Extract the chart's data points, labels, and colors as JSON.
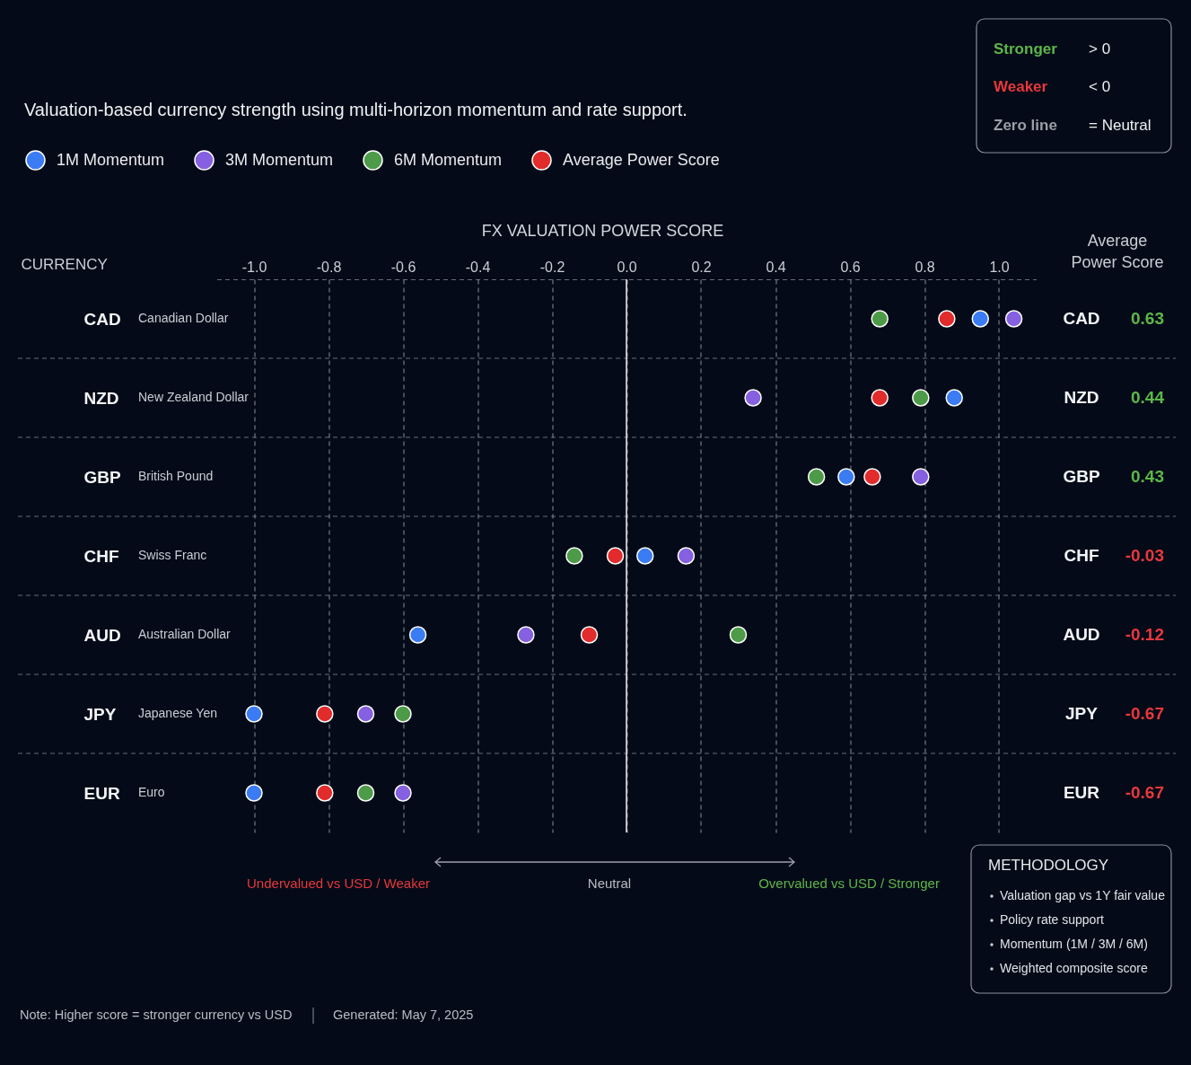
{
  "chart_data": [
    {
      "type": "scatter",
      "title": "Valuation-based currency strength using multi-horizon momentum and rate support.",
      "xlabel": "FX VALUATION POWER SCORE",
      "ylabel": "CURRENCY",
      "orientation": "horizontal",
      "categories": [
        "CAD",
        "NZD",
        "GBP",
        "CHF",
        "AUD",
        "JPY",
        "EUR"
      ],
      "series": [
        {
          "name": "1M Momentum",
          "color": "#3b7cf4",
          "values": [
            0.95,
            0.88,
            0.59,
            0.05,
            -0.56,
            -1.0,
            -1.0
          ]
        },
        {
          "name": "3M Momentum",
          "color": "#8560e0",
          "values": [
            1.04,
            0.34,
            0.79,
            0.16,
            -0.27,
            -0.7,
            -0.6
          ]
        },
        {
          "name": "6M Momentum",
          "color": "#4d9b48",
          "values": [
            0.68,
            0.79,
            0.51,
            -0.14,
            0.3,
            -0.6,
            -0.7
          ]
        },
        {
          "name": "Average Power Score",
          "color": "#e22b2b",
          "values": [
            0.86,
            0.68,
            0.66,
            -0.03,
            -0.1,
            -0.81,
            -0.81
          ]
        }
      ],
      "xlim": [
        -1.1,
        1.1
      ],
      "xticks": [
        {
          "value": -1,
          "label": "-1.0"
        },
        -0.8,
        -0.6,
        -0.4,
        -0.2,
        {
          "value": 0,
          "label": "0.0"
        },
        0.2,
        0.4,
        0.6,
        0.8,
        {
          "value": 1,
          "label": "1.0"
        }
      ],
      "grid": true,
      "legend": "top left",
      "marker": "circle",
      "ref_lines": [
        {
          "axis": "x",
          "value": 0,
          "color": "#e6e8ec",
          "line_style": "solid"
        }
      ],
      "annotations": [
        "Canadian Dollar",
        "New Zealand Dollar",
        "British Pound",
        "Swiss Franc",
        "Australian Dollar",
        "Japanese Yen",
        "Euro",
        "Stronger",
        "> 0",
        "Weaker",
        "< 0",
        "Zero line",
        "= Neutral",
        "Undervalued vs USD / Weaker",
        "Neutral",
        "Overvalued vs USD / Stronger",
        "Note: Higher score = stronger currency vs USD",
        "Generated: May 7, 2025"
      ]
    },
    {
      "type": "other",
      "title": "Average Power Score",
      "categories": [
        "CAD",
        "NZD",
        "GBP",
        "CHF",
        "AUD",
        "JPY",
        "EUR"
      ],
      "values": [
        0.63,
        0.44,
        0.43,
        -0.03,
        -0.12,
        -0.67,
        -0.67
      ],
      "colors": [
        "#5cb84a",
        "#5cb84a",
        "#5cb84a",
        "#e8383d",
        "#e8383d",
        "#e8383d",
        "#e8383d"
      ],
      "data_labels": true
    },
    {
      "type": "other",
      "title": "METHODOLOGY",
      "annotations": [
        "Valuation gap vs 1Y fair value",
        "Policy rate support",
        "Momentum (1M / 3M / 6M)",
        "Weighted composite score"
      ]
    }
  ]
}
